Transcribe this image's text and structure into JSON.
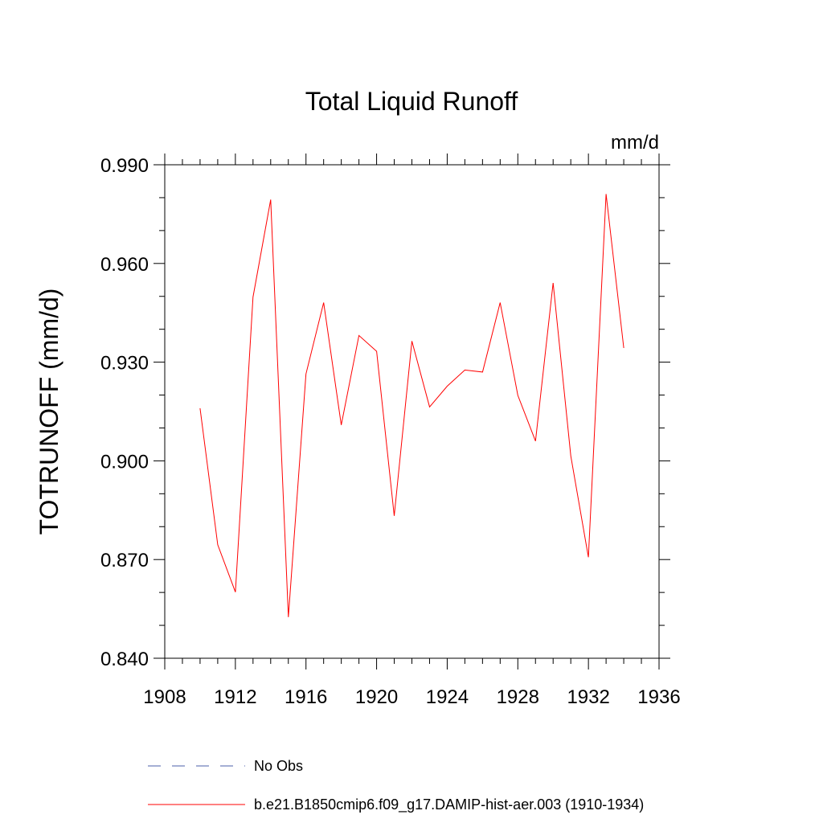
{
  "chart_data": {
    "type": "line",
    "title": "Total Liquid Runoff",
    "units_label": "mm/d",
    "xlabel": "",
    "ylabel": "TOTRUNOFF  (mm/d)",
    "xlim": [
      1908,
      1936
    ],
    "ylim": [
      0.84,
      0.99
    ],
    "x_ticks": [
      1908,
      1912,
      1916,
      1920,
      1924,
      1928,
      1932,
      1936
    ],
    "y_ticks": [
      0.84,
      0.87,
      0.9,
      0.93,
      0.96,
      0.99
    ],
    "x_tick_labels": [
      "1908",
      "1912",
      "1916",
      "1920",
      "1924",
      "1928",
      "1932",
      "1936"
    ],
    "y_tick_labels": [
      "0.840",
      "0.870",
      "0.900",
      "0.930",
      "0.960",
      "0.990"
    ],
    "grid": false,
    "legend_position": "bottom",
    "series": [
      {
        "name": "b.e21.B1850cmip6.f09_g17.DAMIP-hist-aer.003 (1910-1934)",
        "color": "#ff0000",
        "style": "solid",
        "x": [
          1910,
          1911,
          1912,
          1913,
          1914,
          1915,
          1916,
          1917,
          1918,
          1919,
          1920,
          1921,
          1922,
          1923,
          1924,
          1925,
          1926,
          1927,
          1928,
          1929,
          1930,
          1931,
          1932,
          1933,
          1934
        ],
        "values": [
          0.916,
          0.8745,
          0.8601,
          0.9498,
          0.9794,
          0.8525,
          0.9264,
          0.9481,
          0.9109,
          0.9381,
          0.9333,
          0.8833,
          0.9364,
          0.9164,
          0.9227,
          0.9276,
          0.927,
          0.9481,
          0.9199,
          0.906,
          0.9541,
          0.9015,
          0.8707,
          0.9811,
          0.9343
        ]
      }
    ],
    "legend": [
      {
        "label": "No Obs",
        "color": "#4b5fa8",
        "style": "dashed"
      },
      {
        "label": "b.e21.B1850cmip6.f09_g17.DAMIP-hist-aer.003 (1910-1934)",
        "color": "#ff0000",
        "style": "solid"
      }
    ]
  }
}
